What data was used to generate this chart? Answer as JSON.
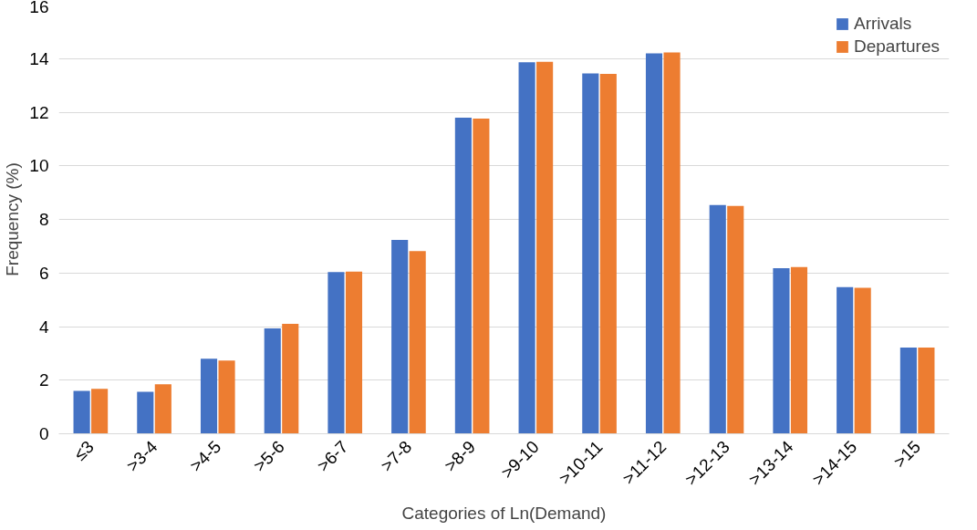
{
  "chart_data": {
    "type": "bar",
    "xlabel": "Categories of Ln(Demand)",
    "ylabel": "Frequency (%)",
    "categories": [
      "≤3",
      ">3-4",
      ">4-5",
      ">5-6",
      ">6-7",
      ">7-8",
      ">8-9",
      ">9-10",
      ">10-11",
      ">11-12",
      ">12-13",
      ">13-14",
      ">14-15",
      ">15"
    ],
    "series": [
      {
        "name": "Arrivals",
        "color": "#4472c4",
        "values": [
          1.6,
          1.57,
          2.8,
          3.93,
          6.03,
          7.23,
          11.8,
          13.86,
          13.45,
          14.2,
          8.54,
          6.18,
          5.47,
          3.22
        ]
      },
      {
        "name": "Departures",
        "color": "#ed7d31",
        "values": [
          1.68,
          1.85,
          2.73,
          4.1,
          6.05,
          6.82,
          11.76,
          13.88,
          13.43,
          14.23,
          8.5,
          6.22,
          5.45,
          3.22
        ]
      }
    ],
    "ylim": [
      0,
      16
    ],
    "yticks": [
      0,
      2,
      4,
      6,
      8,
      10,
      12,
      14,
      16
    ],
    "grid": "y",
    "legend": "top right"
  }
}
